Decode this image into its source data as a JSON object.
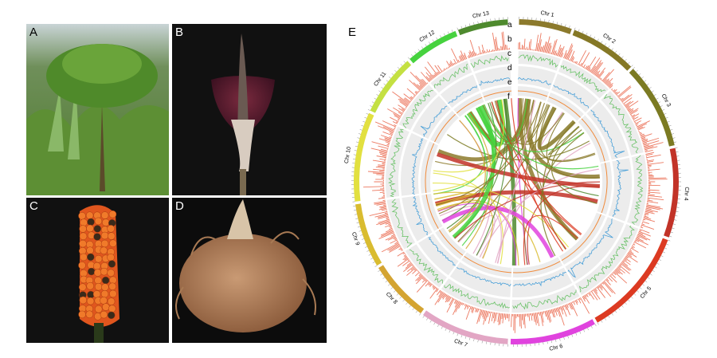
{
  "panels": [
    {
      "label": "A"
    },
    {
      "label": "B"
    },
    {
      "label": "C"
    },
    {
      "label": "D"
    }
  ],
  "circos": {
    "label": "E",
    "chromosomes": [
      {
        "name": "Chr 1",
        "color": "#8c7a2c"
      },
      {
        "name": "Chr 2",
        "color": "#857826"
      },
      {
        "name": "Chr 3",
        "color": "#7b7a22"
      },
      {
        "name": "Chr 4",
        "color": "#c23328"
      },
      {
        "name": "Chr 5",
        "color": "#dc3a22"
      },
      {
        "name": "Chr 6",
        "color": "#e043de"
      },
      {
        "name": "Chr 7",
        "color": "#e2a6c4"
      },
      {
        "name": "Chr 8",
        "color": "#d4a432"
      },
      {
        "name": "Chr 9",
        "color": "#d9bc30"
      },
      {
        "name": "Chr 10",
        "color": "#e2e040"
      },
      {
        "name": "Chr 11",
        "color": "#c4e042"
      },
      {
        "name": "Chr 12",
        "color": "#46d23e"
      },
      {
        "name": "Chr 13",
        "color": "#4e8a2e"
      }
    ],
    "tracks": [
      "a",
      "b",
      "c",
      "d",
      "e",
      "f"
    ]
  }
}
